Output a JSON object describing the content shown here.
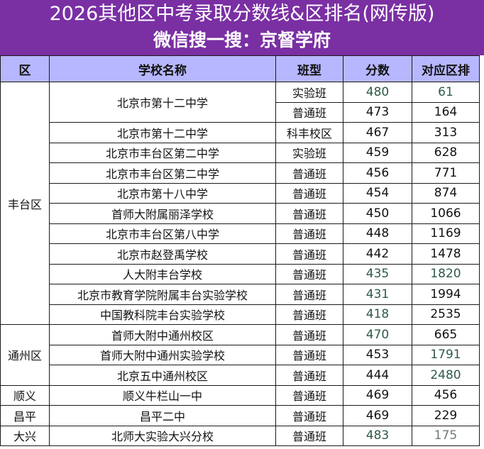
{
  "header": {
    "title": "2026其他区中考录取分数线&区排名(网传版)",
    "subtitle": "微信搜一搜：京督学府"
  },
  "table": {
    "headers": [
      "区",
      "学校名称",
      "班型",
      "分数",
      "对应区排"
    ],
    "districts": [
      "丰台区",
      "通州区",
      "顺义",
      "昌平",
      "大兴"
    ],
    "rows": [
      {
        "school": "北京市第十二中学",
        "class": "实验班",
        "score": "480",
        "rank": "61"
      },
      {
        "class": "普通班",
        "score": "473",
        "rank": "164"
      },
      {
        "school": "北京市第十二中学",
        "class": "科丰校区",
        "score": "467",
        "rank": "313"
      },
      {
        "school": "北京市丰台区第二中学",
        "class": "实验班",
        "score": "459",
        "rank": "628"
      },
      {
        "school": "北京市丰台区第二中学",
        "class": "普通班",
        "score": "456",
        "rank": "771"
      },
      {
        "school": "北京市第十八中学",
        "class": "普通班",
        "score": "454",
        "rank": "874"
      },
      {
        "school": "首师大附属丽泽学校",
        "class": "普通班",
        "score": "450",
        "rank": "1066"
      },
      {
        "school": "北京市丰台区第八中学",
        "class": "普通班",
        "score": "448",
        "rank": "1169"
      },
      {
        "school": "北京市赵登禹学校",
        "class": "普通班",
        "score": "442",
        "rank": "1478"
      },
      {
        "school": "人大附丰台学校",
        "class": "普通班",
        "score": "435",
        "rank": "1820"
      },
      {
        "school": "北京市教育学院附属丰台实验学校",
        "class": "普通班",
        "score": "431",
        "rank": "1994"
      },
      {
        "school": "中国教科院丰台实验学校",
        "class": "普通班",
        "score": "418",
        "rank": "2535"
      },
      {
        "school": "首师大附中通州校区",
        "class": "普通班",
        "score": "470",
        "rank": "665"
      },
      {
        "school": "首师大附中通州实验学校",
        "class": "普通班",
        "score": "453",
        "rank": "1791"
      },
      {
        "school": "北京五中通州校区",
        "class": "普通班",
        "score": "444",
        "rank": "2480"
      },
      {
        "school": "顺义牛栏山一中",
        "class": "普通班",
        "score": "469",
        "rank": "456"
      },
      {
        "school": "昌平二中",
        "class": "普通班",
        "score": "469",
        "rank": "229"
      },
      {
        "school": "北师大实验大兴分校",
        "class": "普通班",
        "score": "483",
        "rank": "175"
      }
    ]
  }
}
